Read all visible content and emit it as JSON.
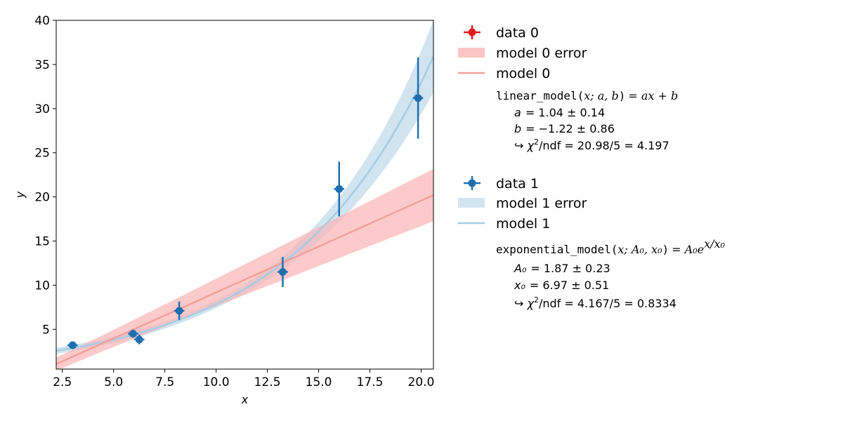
{
  "chart_data": {
    "type": "scatter",
    "title": "",
    "xlabel": "x",
    "ylabel": "y",
    "xlim": [
      2.2,
      20.6
    ],
    "ylim": [
      0.5,
      40
    ],
    "xticks": [
      "2.5",
      "5.0",
      "7.5",
      "10.0",
      "12.5",
      "15.0",
      "17.5",
      "20.0"
    ],
    "xtick_values": [
      2.5,
      5.0,
      7.5,
      10.0,
      12.5,
      15.0,
      17.5,
      20.0
    ],
    "yticks": [
      "5",
      "10",
      "15",
      "20",
      "25",
      "30",
      "35",
      "40"
    ],
    "ytick_values": [
      5,
      10,
      15,
      20,
      25,
      30,
      35,
      40
    ],
    "grid": false,
    "legend_position": "outside-right",
    "series": [
      {
        "name": "data 0",
        "kind": "points",
        "color": "#e41a1c",
        "points": []
      },
      {
        "name": "model 0 error",
        "kind": "band",
        "color": "#fbb4b4"
      },
      {
        "name": "model 0",
        "kind": "line",
        "color": "#f4a09a",
        "model": "linear",
        "params": {
          "a": 1.04,
          "b": -1.22
        },
        "param_errors": {
          "a": 0.14,
          "b": 0.86
        }
      },
      {
        "name": "data 1",
        "kind": "points",
        "color": "#1f6fb0",
        "points": [
          {
            "x": 3.0,
            "y": 3.2,
            "xerr": 0.25,
            "yerr": 0.3
          },
          {
            "x": 5.95,
            "y": 4.5,
            "xerr": 0.25,
            "yerr": 0.45
          },
          {
            "x": 6.25,
            "y": 3.85,
            "xerr": 0.25,
            "yerr": 0.55
          },
          {
            "x": 8.2,
            "y": 7.1,
            "xerr": 0.25,
            "yerr": 1.05
          },
          {
            "x": 13.25,
            "y": 11.5,
            "xerr": 0.25,
            "yerr": 1.7
          },
          {
            "x": 16.0,
            "y": 20.9,
            "xerr": 0.25,
            "yerr": 3.1
          },
          {
            "x": 19.85,
            "y": 31.2,
            "xerr": 0.25,
            "yerr": 4.6
          }
        ]
      },
      {
        "name": "model 1 error",
        "kind": "band",
        "color": "#cfe3ef"
      },
      {
        "name": "model 1",
        "kind": "line",
        "color": "#a6cde3",
        "model": "exponential",
        "params": {
          "A0": 1.87,
          "x0": 6.97
        },
        "param_errors": {
          "A0": 0.23,
          "x0": 0.51
        }
      }
    ],
    "legend": {
      "entries": [
        {
          "label": "data 0",
          "marker": "errorbar-point",
          "color": "#e41a1c"
        },
        {
          "label": "model 0 error",
          "marker": "band",
          "color": "#fbc5c5"
        },
        {
          "label": "model 0",
          "marker": "line",
          "color": "#f4a09a"
        },
        {
          "label": "data 1",
          "marker": "errorbar-point",
          "color": "#1f6fb0"
        },
        {
          "label": "model 1 error",
          "marker": "band",
          "color": "#d1e5f0"
        },
        {
          "label": "model 1",
          "marker": "line",
          "color": "#a6cde3"
        }
      ],
      "fit_info": [
        {
          "formula_func": "linear_model",
          "formula_args": "x; a, b",
          "formula_rhs": "= ax + b",
          "params": [
            {
              "name": "a",
              "text": "=  1.04 ± 0.14"
            },
            {
              "name": "b",
              "text": "= −1.22 ± 0.86"
            }
          ],
          "chi2": "/ndf = 20.98/5 = 4.197"
        },
        {
          "formula_func": "exponential_model",
          "formula_args": "x; A₀, x₀",
          "formula_rhs": "= A₀e",
          "formula_exp": "x/x₀",
          "params": [
            {
              "name": "A₀",
              "text": "=  1.87 ± 0.23"
            },
            {
              "name": "x₀",
              "text": "=  6.97 ± 0.51"
            }
          ],
          "chi2": "/ndf = 4.167/5 = 0.8334"
        }
      ]
    }
  }
}
